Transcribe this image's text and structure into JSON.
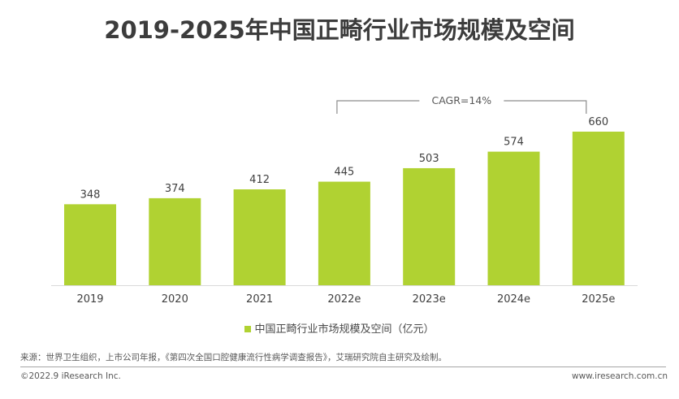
{
  "title": "2019-2025年中国正畸行业市场规模及空间",
  "chart_data": {
    "type": "bar",
    "title": "2019-2025年中国正畸行业市场规模及空间",
    "categories": [
      "2019",
      "2020",
      "2021",
      "2022e",
      "2023e",
      "2024e",
      "2025e"
    ],
    "series": [
      {
        "name": "中国正畸行业市场规模及空间（亿元）",
        "values": [
          348,
          374,
          412,
          445,
          503,
          574,
          660
        ],
        "color": "#b0d232"
      }
    ],
    "data_labels": [
      "348",
      "374",
      "412",
      "445",
      "503",
      "574",
      "660"
    ],
    "xlabel": "",
    "ylabel": "",
    "ylim": [
      0,
      660
    ],
    "grid": false,
    "y_axis_visible": false,
    "legend_position": "bottom",
    "annotations": [
      {
        "text": "CAGR=14%",
        "type": "bracket",
        "from_category": "2022e",
        "to_category": "2025e"
      }
    ]
  },
  "legend": {
    "label": "中国正畸行业市场规模及空间（亿元）"
  },
  "footer": {
    "source": "来源：世界卫生组织，上市公司年报，《第四次全国口腔健康流行性病学调查报告》，艾瑞研究院自主研究及绘制。",
    "copyright": "©2022.9 iResearch Inc.",
    "website": "www.iresearch.com.cn"
  },
  "colors": {
    "bar": "#b0d232",
    "text": "#3c3c3c",
    "axis": "#d9d9d9",
    "bracket": "#8c8c8c"
  }
}
